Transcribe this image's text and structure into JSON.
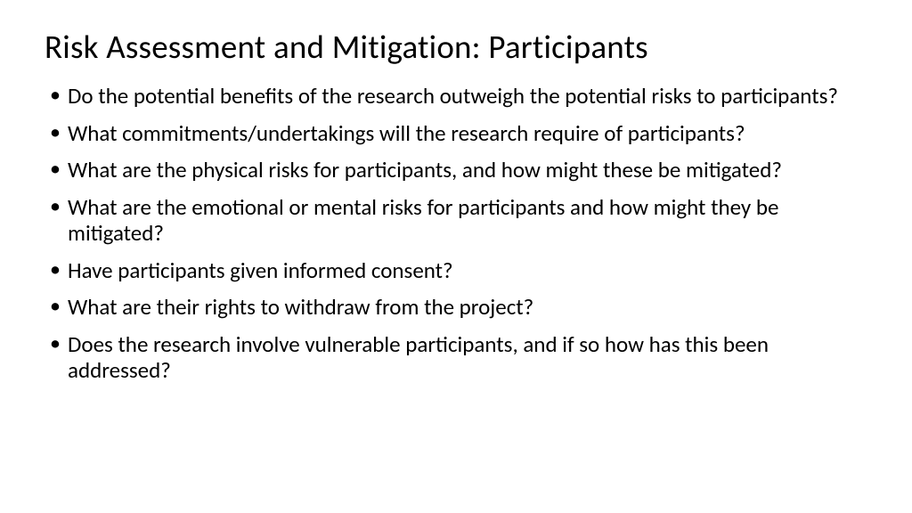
{
  "slide": {
    "title": "Risk Assessment and Mitigation: Participants",
    "bullets": [
      "Do the potential benefits of the research outweigh the potential risks to participants?",
      "What commitments/undertakings will the research require of participants?",
      "What are the physical risks for participants, and how might these be mitigated?",
      "What are the emotional or mental risks for participants and how might they be mitigated?",
      "Have participants given informed consent?",
      "What are their rights to withdraw from the project?",
      "Does the research involve vulnerable participants, and if so how has this been addressed?"
    ],
    "background_color": "#ffffff",
    "text_color": "#000000",
    "title_fontsize": 37,
    "body_fontsize": 25
  }
}
